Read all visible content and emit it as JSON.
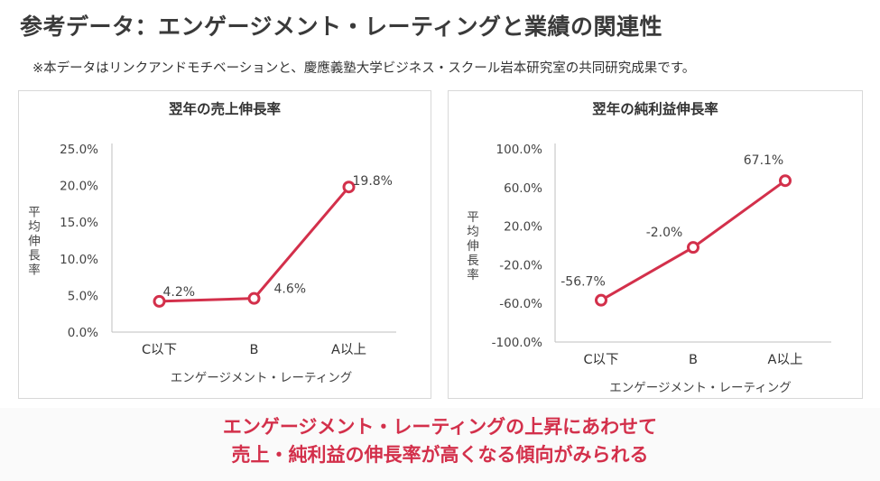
{
  "page": {
    "title": "参考データ：エンゲージメント・レーティングと業績の関連性",
    "note": "※本データはリンクアンドモチベーションと、慶應義塾大学ビジネス・スクール岩本研究室の共同研究成果です。",
    "conclusion_line1": "エンゲージメント・レーティングの上昇にあわせて",
    "conclusion_line2": "売上・純利益の伸長率が高くなる傾向がみられる",
    "accent_color": "#d3304b"
  },
  "chart_data": [
    {
      "type": "line",
      "title": "翌年の売上伸長率",
      "categories": [
        "C以下",
        "B",
        "A以上"
      ],
      "values": [
        4.2,
        4.6,
        19.8
      ],
      "data_labels": [
        "4.2%",
        "4.6%",
        "19.8%"
      ],
      "ylabel": "平均伸長率",
      "xlabel": "エンゲージメント・レーティング",
      "ylim": [
        0,
        25
      ],
      "yticks": [
        0,
        5,
        10,
        15,
        20,
        25
      ],
      "ytick_labels": [
        "0.0%",
        "5.0%",
        "10.0%",
        "15.0%",
        "20.0%",
        "25.0%"
      ],
      "grid": false,
      "color": "#d3304b"
    },
    {
      "type": "line",
      "title": "翌年の純利益伸長率",
      "categories": [
        "C以下",
        "B",
        "A以上"
      ],
      "values": [
        -56.7,
        -2.0,
        67.1
      ],
      "data_labels": [
        "-56.7%",
        "-2.0%",
        "67.1%"
      ],
      "ylabel": "平均伸長率",
      "xlabel": "エンゲージメント・レーティング",
      "ylim": [
        -100,
        100
      ],
      "yticks": [
        -100,
        -60,
        -20,
        20,
        60,
        100
      ],
      "ytick_labels": [
        "-100.0%",
        "-60.0%",
        "-20.0%",
        "20.0%",
        "60.0%",
        "100.0%"
      ],
      "grid": false,
      "color": "#d3304b"
    }
  ]
}
